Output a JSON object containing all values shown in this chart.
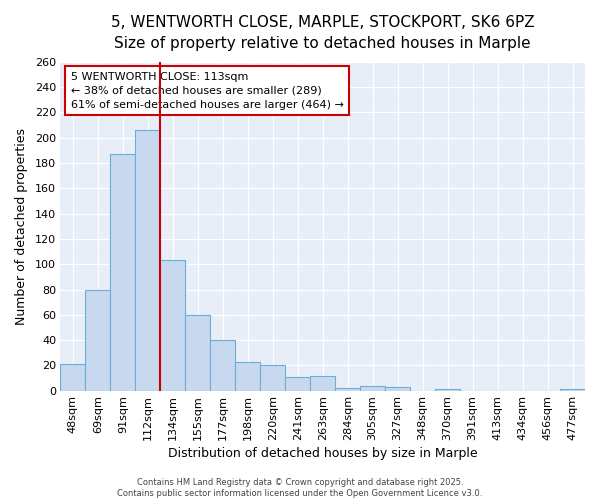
{
  "title_line1": "5, WENTWORTH CLOSE, MARPLE, STOCKPORT, SK6 6PZ",
  "title_line2": "Size of property relative to detached houses in Marple",
  "xlabel": "Distribution of detached houses by size in Marple",
  "ylabel": "Number of detached properties",
  "categories": [
    "48sqm",
    "69sqm",
    "91sqm",
    "112sqm",
    "134sqm",
    "155sqm",
    "177sqm",
    "198sqm",
    "220sqm",
    "241sqm",
    "263sqm",
    "284sqm",
    "305sqm",
    "327sqm",
    "348sqm",
    "370sqm",
    "391sqm",
    "413sqm",
    "434sqm",
    "456sqm",
    "477sqm"
  ],
  "values": [
    21,
    80,
    187,
    206,
    103,
    60,
    40,
    23,
    20,
    11,
    12,
    2,
    4,
    3,
    0,
    1,
    0,
    0,
    0,
    0,
    1
  ],
  "bar_color": "#c8d9ef",
  "bar_edge_color": "#6aaed6",
  "reference_line_color": "#cc0000",
  "annotation_text": "5 WENTWORTH CLOSE: 113sqm\n← 38% of detached houses are smaller (289)\n61% of semi-detached houses are larger (464) →",
  "annotation_box_color": "#cc0000",
  "annotation_fill": "#ffffff",
  "ylim": [
    0,
    260
  ],
  "yticks": [
    0,
    20,
    40,
    60,
    80,
    100,
    120,
    140,
    160,
    180,
    200,
    220,
    240,
    260
  ],
  "footer_text": "Contains HM Land Registry data © Crown copyright and database right 2025.\nContains public sector information licensed under the Open Government Licence v3.0.",
  "figure_bg": "#ffffff",
  "plot_bg": "#e8eef8",
  "grid_color": "#ffffff",
  "title1_fontsize": 11,
  "title2_fontsize": 10,
  "axis_label_fontsize": 9,
  "tick_fontsize": 8,
  "footer_fontsize": 6,
  "annot_fontsize": 8
}
